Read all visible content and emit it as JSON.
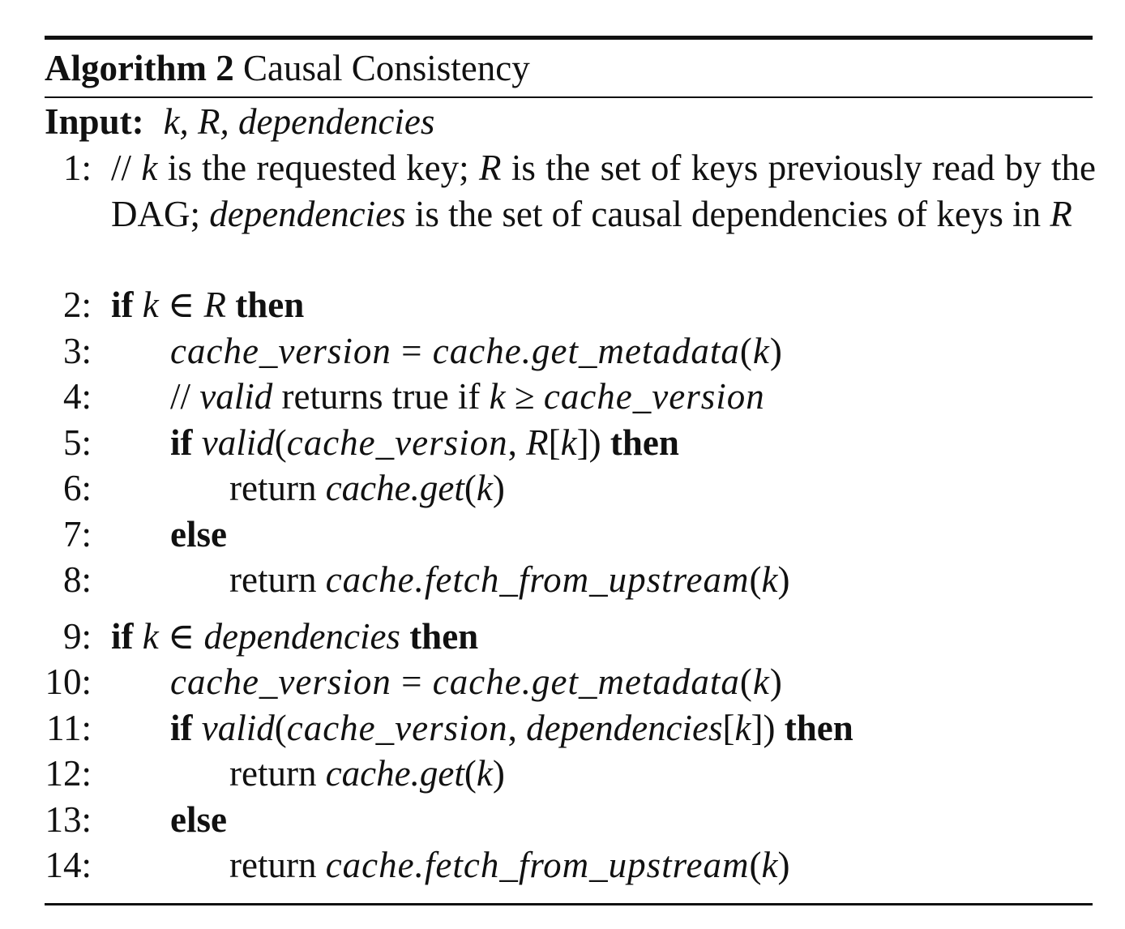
{
  "algorithm": {
    "label": "Algorithm 2",
    "title": "Causal Consistency",
    "input_label": "Input:",
    "input_args": "k, R, dependencies"
  },
  "lines": [
    {
      "num": "1:",
      "text": "// k is the requested key; R is the set of keys previously read by the DAG; dependencies is the set of causal dependencies of keys in R"
    },
    {
      "num": "2:",
      "text": "if k ∈ R then"
    },
    {
      "num": "3:",
      "text": "cache_version = cache.get_metadata(k)"
    },
    {
      "num": "4:",
      "text": "// valid returns true if k ≥ cache_version"
    },
    {
      "num": "5:",
      "text": "if valid(cache_version, R[k]) then"
    },
    {
      "num": "6:",
      "text": "return cache.get(k)"
    },
    {
      "num": "7:",
      "text": "else"
    },
    {
      "num": "8:",
      "text": "return cache.fetch_from_upstream(k)"
    },
    {
      "num": "9:",
      "text": "if k ∈ dependencies then"
    },
    {
      "num": "10:",
      "text": "cache_version = cache.get_metadata(k)"
    },
    {
      "num": "11:",
      "text": "if valid(cache_version, dependencies[k]) then"
    },
    {
      "num": "12:",
      "text": "return cache.get(k)"
    },
    {
      "num": "13:",
      "text": "else"
    },
    {
      "num": "14:",
      "text": "return cache.fetch_from_upstream(k)"
    }
  ],
  "tokens": {
    "comment": "//",
    "if": "if",
    "then": "then",
    "else": "else",
    "return": "return",
    "in": "∈",
    "ge": "≥",
    "eq": "=",
    "k": "k",
    "R": "R",
    "dependencies": "dependencies",
    "valid": "valid",
    "cache_version": "cache_version",
    "get_metadata": "cache.get_metadata",
    "get": "cache.get",
    "fetch": "cache.fetch_from_upstream",
    "l1_a": "is the requested key;",
    "l1_b": "is the set of keys previously read by the DAG;",
    "l1_c": "is the set of causal dependencies of keys in",
    "l4_a": "returns true if"
  }
}
